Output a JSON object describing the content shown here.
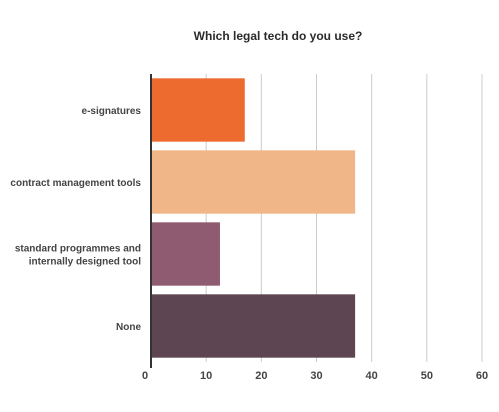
{
  "chart_data": {
    "type": "bar",
    "orientation": "horizontal",
    "title": "Which legal tech do you use?",
    "categories": [
      [
        "e-signatures"
      ],
      [
        "contract management tools"
      ],
      [
        "standard programmes and",
        "internally designed tool"
      ],
      [
        "None"
      ]
    ],
    "values": [
      17,
      37,
      12.5,
      37
    ],
    "colors": [
      "#ee6b2f",
      "#f0b688",
      "#8e5b70",
      "#5d4652"
    ],
    "xlim": [
      0,
      60
    ],
    "xticks": [
      0,
      10,
      20,
      30,
      40,
      50,
      60
    ],
    "grid": true,
    "xlabel": "",
    "ylabel": ""
  }
}
